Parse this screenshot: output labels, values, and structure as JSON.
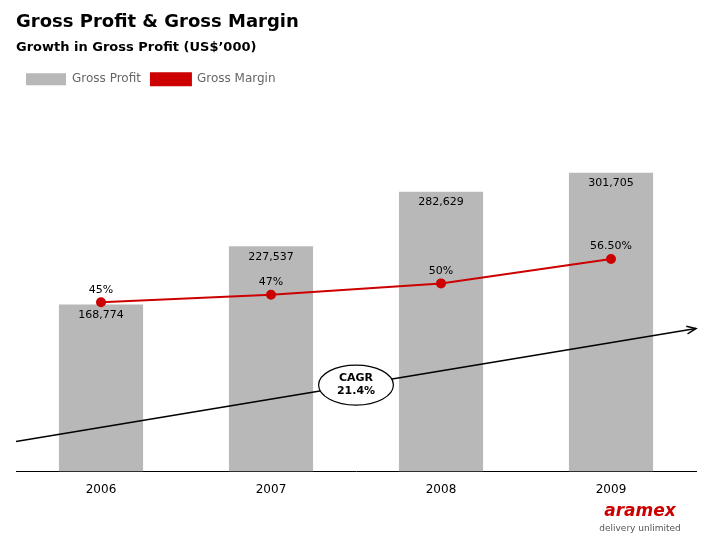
{
  "chart_data": {
    "type": "bar",
    "title": "Gross Profit & Gross Margin",
    "subtitle": "Growth in Gross Profit (US$’000)",
    "categories": [
      "2006",
      "2007",
      "2008",
      "2009"
    ],
    "series": [
      {
        "name": "Gross Profit",
        "type": "bar",
        "color": "#b8b8b8",
        "values": [
          168774,
          227537,
          282629,
          301705
        ],
        "value_labels": [
          "168,774",
          "227,537",
          "282,629",
          "301,705"
        ]
      },
      {
        "name": "Gross Margin",
        "type": "line",
        "color": "#cc0000",
        "axis": "y2",
        "marker": "circle",
        "line_style": "solid",
        "values": [
          45,
          47,
          50,
          56.5
        ],
        "value_labels": [
          "45%",
          "47%",
          "50%",
          "56.50%"
        ]
      }
    ],
    "ylim": [
      0,
      380000
    ],
    "y2lim": [
      0,
      100
    ],
    "data_labels": true,
    "tick_labels": "x",
    "grid": false,
    "legend": "upper left",
    "annotations": [
      "CAGR\n21.4%",
      "aramex",
      "delivery unlimited"
    ]
  }
}
